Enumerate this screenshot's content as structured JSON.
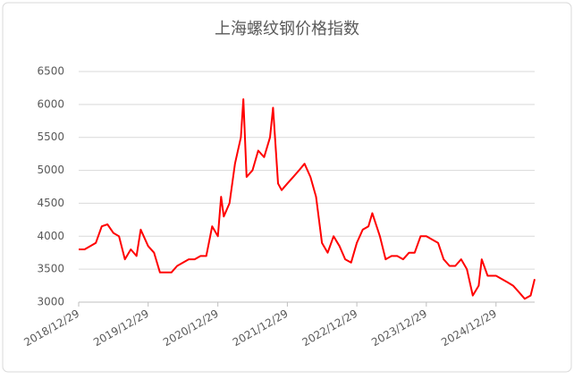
{
  "chart_data": {
    "type": "line",
    "title": "上海螺纹钢价格指数",
    "x": [
      "2018/12/29",
      "2019/01/29",
      "2019/03/29",
      "2019/04/29",
      "2019/05/29",
      "2019/06/29",
      "2019/07/29",
      "2019/08/29",
      "2019/09/29",
      "2019/10/29",
      "2019/11/20",
      "2019/12/29",
      "2020/01/29",
      "2020/02/29",
      "2020/03/29",
      "2020/04/29",
      "2020/05/29",
      "2020/06/29",
      "2020/07/29",
      "2020/08/29",
      "2020/09/29",
      "2020/10/29",
      "2020/11/29",
      "2020/12/29",
      "2021/01/15",
      "2021/01/29",
      "2021/02/28",
      "2021/03/29",
      "2021/04/29",
      "2021/05/12",
      "2021/05/29",
      "2021/06/29",
      "2021/07/29",
      "2021/08/29",
      "2021/09/29",
      "2021/10/15",
      "2021/11/10",
      "2021/11/29",
      "2021/12/29",
      "2022/01/29",
      "2022/02/28",
      "2022/03/29",
      "2022/04/29",
      "2022/05/29",
      "2022/06/29",
      "2022/07/29",
      "2022/08/29",
      "2022/09/29",
      "2022/10/29",
      "2022/11/29",
      "2022/12/29",
      "2023/01/29",
      "2023/02/28",
      "2023/03/20",
      "2023/04/29",
      "2023/05/29",
      "2023/06/29",
      "2023/07/29",
      "2023/08/29",
      "2023/09/29",
      "2023/10/29",
      "2023/11/29",
      "2023/12/29",
      "2024/01/29",
      "2024/02/29",
      "2024/03/29",
      "2024/04/29",
      "2024/05/29",
      "2024/06/29",
      "2024/07/29",
      "2024/08/29",
      "2024/09/29",
      "2024/10/15",
      "2024/11/15",
      "2024/12/29",
      "2025/01/29",
      "2025/02/28",
      "2025/03/29",
      "2025/04/29",
      "2025/05/29",
      "2025/06/29",
      "2025/07/20"
    ],
    "series": [
      {
        "color": "#ff0000",
        "values": [
          3800,
          3800,
          3900,
          4150,
          4180,
          4050,
          4000,
          3650,
          3800,
          3700,
          4100,
          3850,
          3750,
          3450,
          3450,
          3450,
          3550,
          3600,
          3650,
          3650,
          3700,
          3700,
          4150,
          4000,
          4600,
          4300,
          4500,
          5100,
          5500,
          6080,
          4900,
          5000,
          5300,
          5200,
          5500,
          5950,
          4800,
          4700,
          4800,
          4900,
          5000,
          5100,
          4900,
          4600,
          3900,
          3750,
          4000,
          3850,
          3650,
          3600,
          3900,
          4100,
          4150,
          4350,
          4000,
          3650,
          3700,
          3700,
          3650,
          3750,
          3750,
          4000,
          4000,
          3950,
          3900,
          3650,
          3550,
          3550,
          3650,
          3500,
          3100,
          3250,
          3650,
          3400,
          3400,
          3350,
          3300,
          3250,
          3150,
          3050,
          3100,
          3350
        ]
      }
    ],
    "xlim": [
      "2018/12/29",
      "2025/07/20"
    ],
    "xticks": [
      "2018/12/29",
      "2019/12/29",
      "2020/12/29",
      "2021/12/29",
      "2022/12/29",
      "2023/12/29",
      "2024/12/29"
    ],
    "ylim": [
      3000,
      6500
    ],
    "yticks": [
      3000,
      3500,
      4000,
      4500,
      5000,
      5500,
      6000,
      6500
    ],
    "grid": true
  }
}
